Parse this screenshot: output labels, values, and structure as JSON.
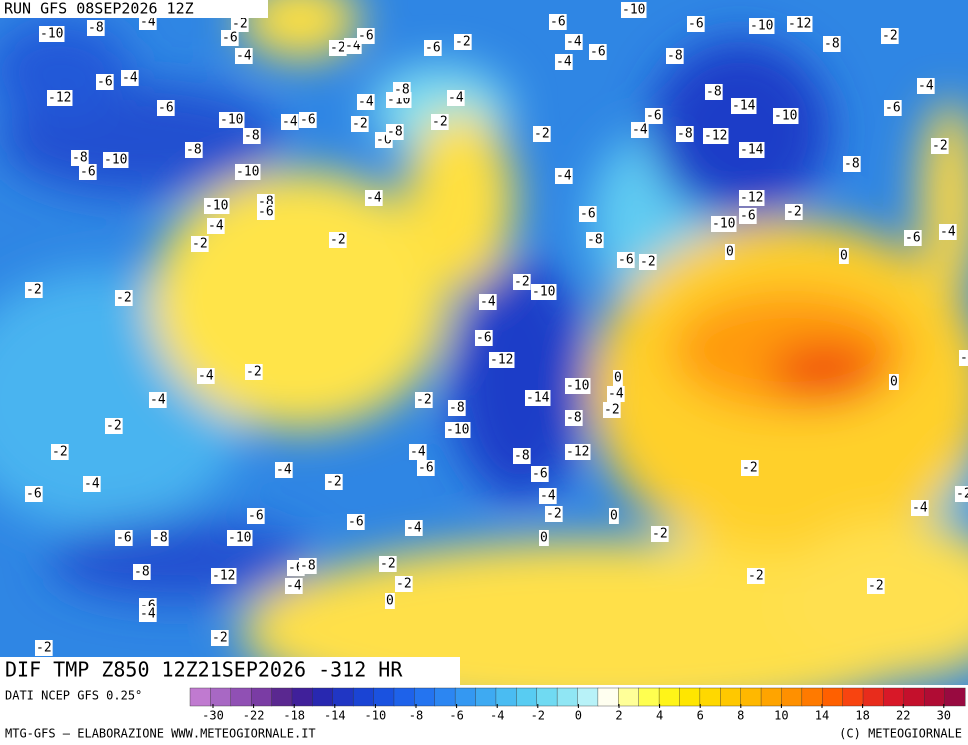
{
  "header": {
    "run": "RUN GFS 08SEP2026 12Z",
    "title": "DIF TMP Z850 12Z21SEP2026 -312 HR"
  },
  "footer": {
    "source": "DATI NCEP GFS 0.25°",
    "credit": "MTG-GFS — ELABORAZIONE WWW.METEOGIORNALE.IT",
    "copyright": "(C) METEOGIORNALE"
  },
  "colorbar": {
    "colors": [
      "#c07ad0",
      "#a868c4",
      "#9050b4",
      "#7a3ca4",
      "#5a2890",
      "#40209a",
      "#2828b0",
      "#2036c4",
      "#1a44d4",
      "#1a52e0",
      "#1e62ea",
      "#2474f0",
      "#2c86f2",
      "#3498f2",
      "#3eaaf2",
      "#4abcf2",
      "#58ccf2",
      "#70daf2",
      "#90e6f4",
      "#b8f2f8",
      "#fffff0",
      "#ffff98",
      "#ffff50",
      "#fff418",
      "#ffe600",
      "#ffd800",
      "#ffc800",
      "#ffb800",
      "#ffa400",
      "#ff9000",
      "#ff7a00",
      "#ff6000",
      "#f84410",
      "#e82c1c",
      "#d81828",
      "#c4102c",
      "#b00c34",
      "#980a40"
    ],
    "ticks": [
      -30,
      -22,
      -18,
      -14,
      -10,
      -8,
      -6,
      -4,
      -2,
      0,
      2,
      4,
      6,
      8,
      10,
      14,
      18,
      22,
      30
    ]
  },
  "contour_labels": [
    -10,
    -8,
    -4,
    -2,
    -6,
    -4,
    -2,
    -4,
    -6,
    -6,
    -2,
    -6,
    -4,
    -6,
    -4,
    -10,
    -6,
    -10,
    -12,
    -8,
    -2,
    -8,
    -8,
    -14,
    -10,
    -6,
    -4,
    -6,
    -4,
    -8,
    -12,
    -14,
    -8,
    -2,
    -12,
    -6,
    -4,
    -6,
    -10,
    -8,
    -4,
    -6,
    -2,
    -6,
    -8,
    -4,
    -10,
    -8,
    -4,
    -2,
    -2,
    -8,
    -10,
    -6,
    -8,
    -10,
    -10,
    -8,
    -6,
    -4,
    -2,
    -2,
    -4,
    -4,
    -6,
    -8,
    -12,
    -10,
    -6,
    -2,
    0,
    0,
    -6,
    -4,
    -6,
    -2,
    -2,
    -2,
    -2,
    -10,
    -4,
    -6,
    -12,
    -4,
    -2,
    -4,
    -2,
    -2,
    -2,
    -8,
    -10,
    -14,
    -10,
    0,
    -4,
    -2,
    -8,
    -12,
    -8,
    -6,
    -4,
    -2,
    -4,
    -6,
    -4,
    -2,
    -6,
    -4,
    -6,
    -6,
    -4,
    0,
    0,
    -2,
    -2,
    -4,
    -2,
    -6,
    -8,
    -10,
    -8,
    -12,
    -6,
    -8,
    -4,
    -2,
    -2,
    0,
    -6,
    -4,
    -2,
    -2,
    -2,
    -2,
    0,
    -2
  ]
}
